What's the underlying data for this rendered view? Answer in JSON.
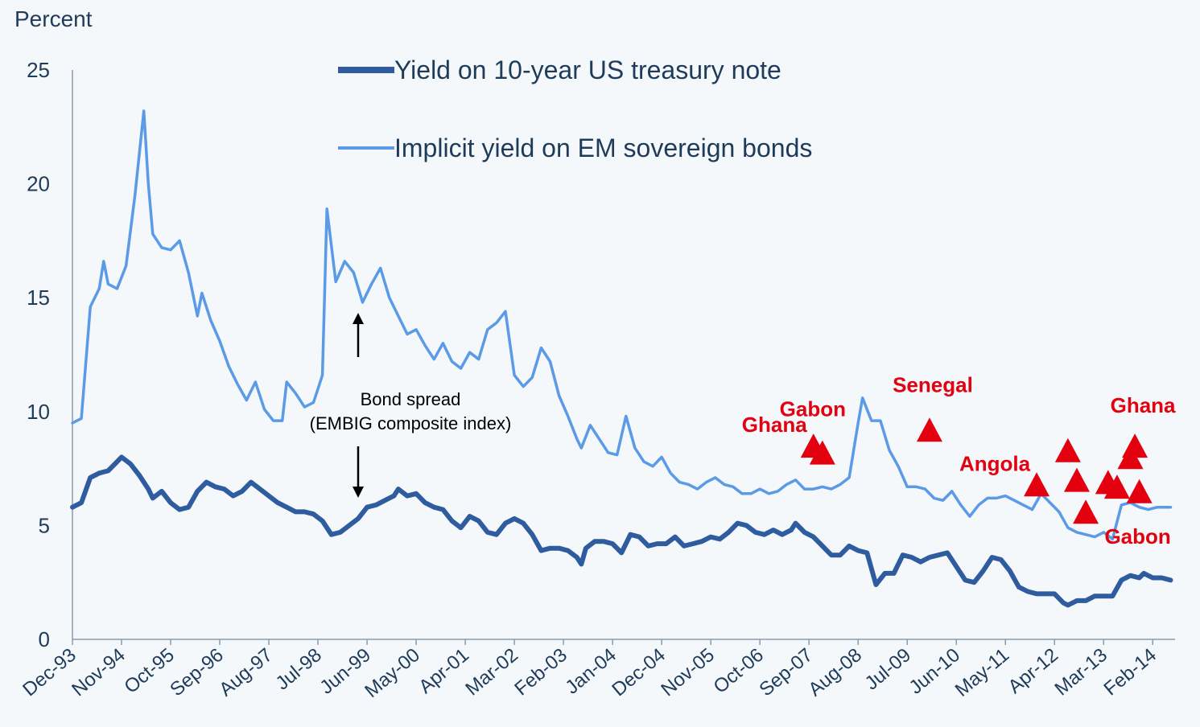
{
  "chart_data": {
    "type": "line",
    "ylabel": "Percent",
    "ylim": [
      0,
      25
    ],
    "yticks": [
      "0",
      "5",
      "10",
      "15",
      "20",
      "25"
    ],
    "xlim": [
      "Dec-93",
      "Jun-14"
    ],
    "xticks": [
      "Dec-93",
      "Nov-94",
      "Oct-95",
      "Sep-96",
      "Aug-97",
      "Jul-98",
      "Jun-99",
      "May-00",
      "Apr-01",
      "Mar-02",
      "Feb-03",
      "Jan-04",
      "Dec-04",
      "Nov-05",
      "Oct-06",
      "Sep-07",
      "Aug-08",
      "Jul-09",
      "Jun-10",
      "May-11",
      "Apr-12",
      "Mar-13",
      "Feb-14"
    ],
    "grid": false,
    "legend_position": "top-center",
    "series": [
      {
        "name": "Yield on 10-year US treasury note",
        "color": "#2e5c9e",
        "points": [
          [
            "1993-12",
            5.8
          ],
          [
            "1994-02",
            6.0
          ],
          [
            "1994-04",
            7.1
          ],
          [
            "1994-06",
            7.3
          ],
          [
            "1994-08",
            7.4
          ],
          [
            "1994-10",
            7.8
          ],
          [
            "1994-11",
            8.0
          ],
          [
            "1995-01",
            7.7
          ],
          [
            "1995-03",
            7.2
          ],
          [
            "1995-05",
            6.6
          ],
          [
            "1995-06",
            6.2
          ],
          [
            "1995-08",
            6.5
          ],
          [
            "1995-10",
            6.0
          ],
          [
            "1995-12",
            5.7
          ],
          [
            "1996-02",
            5.8
          ],
          [
            "1996-04",
            6.5
          ],
          [
            "1996-06",
            6.9
          ],
          [
            "1996-08",
            6.7
          ],
          [
            "1996-10",
            6.6
          ],
          [
            "1996-12",
            6.3
          ],
          [
            "1997-02",
            6.5
          ],
          [
            "1997-04",
            6.9
          ],
          [
            "1997-06",
            6.6
          ],
          [
            "1997-08",
            6.3
          ],
          [
            "1997-10",
            6.0
          ],
          [
            "1997-12",
            5.8
          ],
          [
            "1998-02",
            5.6
          ],
          [
            "1998-04",
            5.6
          ],
          [
            "1998-06",
            5.5
          ],
          [
            "1998-08",
            5.2
          ],
          [
            "1998-10",
            4.6
          ],
          [
            "1998-12",
            4.7
          ],
          [
            "1999-02",
            5.0
          ],
          [
            "1999-04",
            5.3
          ],
          [
            "1999-06",
            5.8
          ],
          [
            "1999-08",
            5.9
          ],
          [
            "1999-10",
            6.1
          ],
          [
            "1999-12",
            6.3
          ],
          [
            "2000-01",
            6.6
          ],
          [
            "2000-03",
            6.3
          ],
          [
            "2000-05",
            6.4
          ],
          [
            "2000-07",
            6.0
          ],
          [
            "2000-09",
            5.8
          ],
          [
            "2000-11",
            5.7
          ],
          [
            "2001-01",
            5.2
          ],
          [
            "2001-03",
            4.9
          ],
          [
            "2001-05",
            5.4
          ],
          [
            "2001-07",
            5.2
          ],
          [
            "2001-09",
            4.7
          ],
          [
            "2001-11",
            4.6
          ],
          [
            "2002-01",
            5.1
          ],
          [
            "2002-03",
            5.3
          ],
          [
            "2002-05",
            5.1
          ],
          [
            "2002-07",
            4.6
          ],
          [
            "2002-09",
            3.9
          ],
          [
            "2002-11",
            4.0
          ],
          [
            "2003-01",
            4.0
          ],
          [
            "2003-03",
            3.9
          ],
          [
            "2003-05",
            3.6
          ],
          [
            "2003-06",
            3.3
          ],
          [
            "2003-07",
            4.0
          ],
          [
            "2003-09",
            4.3
          ],
          [
            "2003-11",
            4.3
          ],
          [
            "2004-01",
            4.2
          ],
          [
            "2004-03",
            3.8
          ],
          [
            "2004-05",
            4.6
          ],
          [
            "2004-07",
            4.5
          ],
          [
            "2004-09",
            4.1
          ],
          [
            "2004-11",
            4.2
          ],
          [
            "2005-01",
            4.2
          ],
          [
            "2005-03",
            4.5
          ],
          [
            "2005-05",
            4.1
          ],
          [
            "2005-07",
            4.2
          ],
          [
            "2005-09",
            4.3
          ],
          [
            "2005-11",
            4.5
          ],
          [
            "2006-01",
            4.4
          ],
          [
            "2006-03",
            4.7
          ],
          [
            "2006-05",
            5.1
          ],
          [
            "2006-07",
            5.0
          ],
          [
            "2006-09",
            4.7
          ],
          [
            "2006-11",
            4.6
          ],
          [
            "2007-01",
            4.8
          ],
          [
            "2007-03",
            4.6
          ],
          [
            "2007-05",
            4.8
          ],
          [
            "2007-06",
            5.1
          ],
          [
            "2007-08",
            4.7
          ],
          [
            "2007-10",
            4.5
          ],
          [
            "2007-12",
            4.1
          ],
          [
            "2008-02",
            3.7
          ],
          [
            "2008-04",
            3.7
          ],
          [
            "2008-06",
            4.1
          ],
          [
            "2008-08",
            3.9
          ],
          [
            "2008-10",
            3.8
          ],
          [
            "2008-12",
            2.4
          ],
          [
            "2009-02",
            2.9
          ],
          [
            "2009-04",
            2.9
          ],
          [
            "2009-06",
            3.7
          ],
          [
            "2009-08",
            3.6
          ],
          [
            "2009-10",
            3.4
          ],
          [
            "2009-12",
            3.6
          ],
          [
            "2010-02",
            3.7
          ],
          [
            "2010-04",
            3.8
          ],
          [
            "2010-06",
            3.2
          ],
          [
            "2010-08",
            2.6
          ],
          [
            "2010-10",
            2.5
          ],
          [
            "2010-12",
            3.0
          ],
          [
            "2011-02",
            3.6
          ],
          [
            "2011-04",
            3.5
          ],
          [
            "2011-06",
            3.0
          ],
          [
            "2011-08",
            2.3
          ],
          [
            "2011-10",
            2.1
          ],
          [
            "2011-12",
            2.0
          ],
          [
            "2012-02",
            2.0
          ],
          [
            "2012-04",
            2.0
          ],
          [
            "2012-06",
            1.6
          ],
          [
            "2012-07",
            1.5
          ],
          [
            "2012-09",
            1.7
          ],
          [
            "2012-11",
            1.7
          ],
          [
            "2013-01",
            1.9
          ],
          [
            "2013-03",
            1.9
          ],
          [
            "2013-05",
            1.9
          ],
          [
            "2013-07",
            2.6
          ],
          [
            "2013-09",
            2.8
          ],
          [
            "2013-11",
            2.7
          ],
          [
            "2013-12",
            2.9
          ],
          [
            "2014-02",
            2.7
          ],
          [
            "2014-04",
            2.7
          ],
          [
            "2014-06",
            2.6
          ]
        ]
      },
      {
        "name": "Implicit yield on EM sovereign bonds",
        "color": "#5b9ae6",
        "points": [
          [
            "1993-12",
            9.5
          ],
          [
            "1994-02",
            9.7
          ],
          [
            "1994-04",
            14.6
          ],
          [
            "1994-06",
            15.4
          ],
          [
            "1994-07",
            16.6
          ],
          [
            "1994-08",
            15.6
          ],
          [
            "1994-10",
            15.4
          ],
          [
            "1994-12",
            16.4
          ],
          [
            "1995-02",
            19.5
          ],
          [
            "1995-04",
            23.2
          ],
          [
            "1995-05",
            20.0
          ],
          [
            "1995-06",
            17.8
          ],
          [
            "1995-08",
            17.2
          ],
          [
            "1995-10",
            17.1
          ],
          [
            "1995-12",
            17.5
          ],
          [
            "1996-02",
            16.1
          ],
          [
            "1996-04",
            14.2
          ],
          [
            "1996-05",
            15.2
          ],
          [
            "1996-07",
            14.0
          ],
          [
            "1996-09",
            13.1
          ],
          [
            "1996-11",
            12.0
          ],
          [
            "1997-01",
            11.2
          ],
          [
            "1997-03",
            10.5
          ],
          [
            "1997-05",
            11.3
          ],
          [
            "1997-07",
            10.1
          ],
          [
            "1997-09",
            9.6
          ],
          [
            "1997-11",
            9.6
          ],
          [
            "1997-12",
            11.3
          ],
          [
            "1998-02",
            10.8
          ],
          [
            "1998-04",
            10.2
          ],
          [
            "1998-06",
            10.4
          ],
          [
            "1998-08",
            11.6
          ],
          [
            "1998-09",
            18.9
          ],
          [
            "1998-11",
            15.7
          ],
          [
            "1999-01",
            16.6
          ],
          [
            "1999-03",
            16.1
          ],
          [
            "1999-05",
            14.8
          ],
          [
            "1999-07",
            15.6
          ],
          [
            "1999-09",
            16.3
          ],
          [
            "1999-11",
            15.0
          ],
          [
            "2000-01",
            14.2
          ],
          [
            "2000-03",
            13.4
          ],
          [
            "2000-05",
            13.6
          ],
          [
            "2000-07",
            12.9
          ],
          [
            "2000-09",
            12.3
          ],
          [
            "2000-11",
            13.0
          ],
          [
            "2001-01",
            12.2
          ],
          [
            "2001-03",
            11.9
          ],
          [
            "2001-05",
            12.6
          ],
          [
            "2001-07",
            12.3
          ],
          [
            "2001-09",
            13.6
          ],
          [
            "2001-11",
            13.9
          ],
          [
            "2002-01",
            14.4
          ],
          [
            "2002-03",
            11.6
          ],
          [
            "2002-05",
            11.1
          ],
          [
            "2002-07",
            11.5
          ],
          [
            "2002-09",
            12.8
          ],
          [
            "2002-11",
            12.2
          ],
          [
            "2003-01",
            10.7
          ],
          [
            "2003-03",
            9.8
          ],
          [
            "2003-05",
            8.8
          ],
          [
            "2003-06",
            8.4
          ],
          [
            "2003-08",
            9.4
          ],
          [
            "2003-10",
            8.8
          ],
          [
            "2003-12",
            8.2
          ],
          [
            "2004-02",
            8.1
          ],
          [
            "2004-04",
            9.8
          ],
          [
            "2004-06",
            8.4
          ],
          [
            "2004-08",
            7.8
          ],
          [
            "2004-10",
            7.6
          ],
          [
            "2004-12",
            8.0
          ],
          [
            "2005-02",
            7.3
          ],
          [
            "2005-04",
            6.9
          ],
          [
            "2005-06",
            6.8
          ],
          [
            "2005-08",
            6.6
          ],
          [
            "2005-10",
            6.9
          ],
          [
            "2005-12",
            7.1
          ],
          [
            "2006-02",
            6.8
          ],
          [
            "2006-04",
            6.7
          ],
          [
            "2006-06",
            6.4
          ],
          [
            "2006-08",
            6.4
          ],
          [
            "2006-10",
            6.6
          ],
          [
            "2006-12",
            6.4
          ],
          [
            "2007-02",
            6.5
          ],
          [
            "2007-04",
            6.8
          ],
          [
            "2007-06",
            7.0
          ],
          [
            "2007-08",
            6.6
          ],
          [
            "2007-10",
            6.6
          ],
          [
            "2007-12",
            6.7
          ],
          [
            "2008-02",
            6.6
          ],
          [
            "2008-04",
            6.8
          ],
          [
            "2008-06",
            7.1
          ],
          [
            "2008-08",
            9.5
          ],
          [
            "2008-09",
            10.6
          ],
          [
            "2008-11",
            9.6
          ],
          [
            "2009-01",
            9.6
          ],
          [
            "2009-03",
            8.3
          ],
          [
            "2009-05",
            7.6
          ],
          [
            "2009-07",
            6.7
          ],
          [
            "2009-09",
            6.7
          ],
          [
            "2009-11",
            6.6
          ],
          [
            "2010-01",
            6.2
          ],
          [
            "2010-03",
            6.1
          ],
          [
            "2010-05",
            6.5
          ],
          [
            "2010-07",
            5.9
          ],
          [
            "2010-09",
            5.4
          ],
          [
            "2010-11",
            5.9
          ],
          [
            "2011-01",
            6.2
          ],
          [
            "2011-03",
            6.2
          ],
          [
            "2011-05",
            6.3
          ],
          [
            "2011-07",
            6.1
          ],
          [
            "2011-09",
            5.9
          ],
          [
            "2011-11",
            5.7
          ],
          [
            "2012-01",
            6.4
          ],
          [
            "2012-03",
            6.0
          ],
          [
            "2012-05",
            5.6
          ],
          [
            "2012-07",
            4.9
          ],
          [
            "2012-09",
            4.7
          ],
          [
            "2012-11",
            4.6
          ],
          [
            "2013-01",
            4.5
          ],
          [
            "2013-03",
            4.7
          ],
          [
            "2013-05",
            4.4
          ],
          [
            "2013-07",
            5.9
          ],
          [
            "2013-09",
            6.0
          ],
          [
            "2013-11",
            5.8
          ],
          [
            "2014-01",
            5.7
          ],
          [
            "2014-03",
            5.8
          ],
          [
            "2014-05",
            5.8
          ],
          [
            "2014-06",
            5.8
          ]
        ]
      }
    ],
    "issuances": [
      {
        "label": "Ghana",
        "date": "2007-10",
        "value": 8.4
      },
      {
        "label": "Gabon",
        "date": "2007-12",
        "value": 8.1
      },
      {
        "label": "Senegal",
        "date": "2009-12",
        "value": 9.1
      },
      {
        "label": "Angola",
        "date": "2011-12",
        "value": 6.7
      },
      {
        "label": "",
        "date": "2012-07",
        "value": 8.2
      },
      {
        "label": "",
        "date": "2012-09",
        "value": 6.9
      },
      {
        "label": "",
        "date": "2012-11",
        "value": 5.5
      },
      {
        "label": "",
        "date": "2013-04",
        "value": 6.8
      },
      {
        "label": "",
        "date": "2013-06",
        "value": 6.6
      },
      {
        "label": "",
        "date": "2013-09",
        "value": 7.9
      },
      {
        "label": "Ghana",
        "date": "2013-10",
        "value": 8.4
      },
      {
        "label": "Gabon",
        "date": "2013-11",
        "value": 6.4
      }
    ],
    "issuance_color": "#e3000f",
    "annotation": {
      "line1": "Bond spread",
      "line2": "(EMBIG composite index)"
    }
  }
}
